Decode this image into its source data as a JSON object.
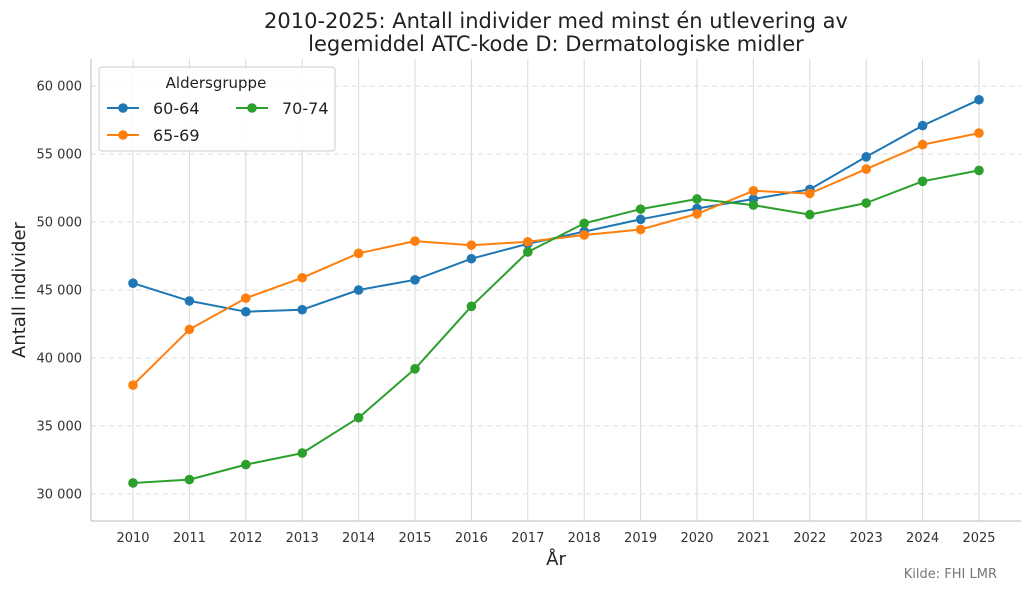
{
  "chart_data": {
    "type": "line",
    "title_line1": "2010-2025: Antall individer med minst én utlevering av",
    "title_line2": "legemiddel ATC-kode D: Dermatologiske midler",
    "xlabel": "År",
    "ylabel": "Antall individer",
    "x": [
      2010,
      2011,
      2012,
      2013,
      2014,
      2015,
      2016,
      2017,
      2018,
      2019,
      2020,
      2021,
      2022,
      2023,
      2024,
      2025
    ],
    "x_tick_labels": [
      "2010",
      "2011",
      "2012",
      "2013",
      "2014",
      "2015",
      "2016",
      "2017",
      "2018",
      "2019",
      "2020",
      "2021",
      "2022",
      "2023",
      "2024",
      "2025"
    ],
    "ylim": [
      28000,
      62000
    ],
    "y_ticks": [
      30000,
      35000,
      40000,
      45000,
      50000,
      55000,
      60000
    ],
    "y_tick_labels": [
      "30 000",
      "35 000",
      "40 000",
      "45 000",
      "50 000",
      "55 000",
      "60 000"
    ],
    "grid": {
      "x": true,
      "y": true,
      "y_style": "dashed"
    },
    "legend": {
      "title": "Aldersgruppe",
      "placement": "top-left",
      "columns": 2
    },
    "series": [
      {
        "name": "60-64",
        "color": "#1f77b4",
        "values": [
          45500,
          44200,
          43400,
          43550,
          45000,
          45750,
          47300,
          48400,
          49300,
          50200,
          51000,
          51700,
          52400,
          54800,
          57100,
          59000
        ]
      },
      {
        "name": "65-69",
        "color": "#ff7f0e",
        "values": [
          38000,
          42100,
          44400,
          45900,
          47700,
          48600,
          48300,
          48550,
          49050,
          49450,
          50600,
          52300,
          52100,
          53900,
          55700,
          56550
        ]
      },
      {
        "name": "70-74",
        "color": "#2ca02c",
        "values": [
          30800,
          31050,
          32150,
          33000,
          35600,
          39200,
          43800,
          47800,
          49900,
          50950,
          51700,
          51250,
          50550,
          51400,
          53000,
          53800
        ]
      }
    ],
    "source": "Kilde: FHI LMR"
  }
}
